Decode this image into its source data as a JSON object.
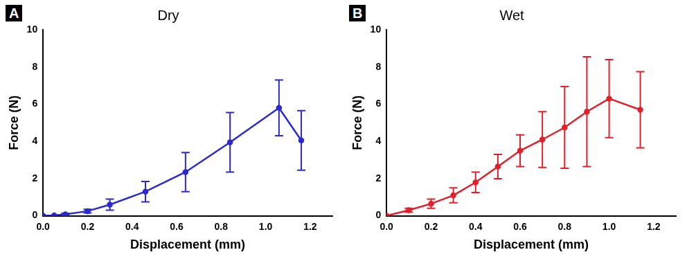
{
  "chart_data": [
    {
      "type": "line",
      "panel_label": "A",
      "title": "Dry",
      "x_label": "Displacement (mm)",
      "y_label": "Force (N)",
      "x": [
        0,
        0.05,
        0.1,
        0.2,
        0.3,
        0.46,
        0.64,
        0.84,
        1.06,
        1.16
      ],
      "values": [
        0,
        0.02,
        0.08,
        0.25,
        0.6,
        1.3,
        2.35,
        3.95,
        5.8,
        4.05
      ],
      "errors": [
        0,
        0,
        0.05,
        0.1,
        0.3,
        0.55,
        1.05,
        1.6,
        1.5,
        1.6
      ],
      "color": "#2a2ad0",
      "marker": "circle",
      "xlim": [
        0,
        1.3
      ],
      "xticks": [
        {
          "value": 0,
          "label": "0.0"
        },
        {
          "value": 0.2,
          "label": "0.2"
        },
        {
          "value": 0.4,
          "label": "0.4"
        },
        {
          "value": 0.6,
          "label": "0.6"
        },
        {
          "value": 0.8,
          "label": "0.8"
        },
        {
          "value": 1,
          "label": "1.0"
        },
        {
          "value": 1.2,
          "label": "1.2"
        }
      ],
      "ylim": [
        0,
        10
      ],
      "yticks": [
        0,
        2,
        4,
        6,
        8,
        10
      ],
      "grid": false
    },
    {
      "type": "line",
      "panel_label": "B",
      "title": "Wet",
      "x_label": "Displacement (mm)",
      "y_label": "Force (N)",
      "x": [
        0,
        0.1,
        0.2,
        0.3,
        0.4,
        0.5,
        0.6,
        0.7,
        0.8,
        0.9,
        1.0,
        1.14
      ],
      "values": [
        0,
        0.3,
        0.65,
        1.1,
        1.8,
        2.65,
        3.5,
        4.1,
        4.75,
        5.6,
        6.3,
        5.7
      ],
      "errors": [
        0,
        0.1,
        0.25,
        0.4,
        0.55,
        0.65,
        0.85,
        1.5,
        2.2,
        2.95,
        2.1,
        2.05
      ],
      "color": "#e0202a",
      "marker": "circle",
      "xlim": [
        0,
        1.3
      ],
      "xticks": [
        {
          "value": 0,
          "label": "0.0"
        },
        {
          "value": 0.2,
          "label": "0.2"
        },
        {
          "value": 0.4,
          "label": "0.4"
        },
        {
          "value": 0.6,
          "label": "0.6"
        },
        {
          "value": 0.8,
          "label": "0.8"
        },
        {
          "value": 1,
          "label": "1.0"
        },
        {
          "value": 1.2,
          "label": "1.2"
        }
      ],
      "ylim": [
        0,
        10
      ],
      "yticks": [
        0,
        2,
        4,
        6,
        8,
        10
      ],
      "grid": false
    }
  ]
}
